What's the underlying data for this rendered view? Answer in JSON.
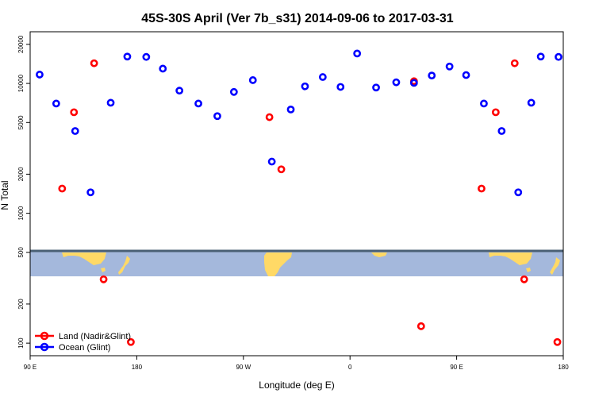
{
  "chart_data": {
    "type": "scatter",
    "title": "45S-30S April (Ver 7b_s31)   2014-09-06 to 2017-03-31",
    "xlabel": "Longitude (deg E)",
    "ylabel": "N Total",
    "x_scale": "linear",
    "y_scale": "log",
    "xlim": [
      90,
      540
    ],
    "ylim": [
      80,
      25000
    ],
    "x_tick_values": [
      90,
      180,
      270,
      360,
      450,
      540
    ],
    "x_tick_labels": [
      "90 E",
      "180",
      "90 W",
      "0",
      "90 E",
      "180"
    ],
    "y_tick_values": [
      100,
      200,
      500,
      1000,
      2000,
      5000,
      10000,
      20000
    ],
    "y_tick_labels": [
      "100",
      "200",
      "500",
      "1000",
      "2000",
      "5000",
      "10000",
      "20000"
    ],
    "grid": false,
    "legend_position": "bottom-left",
    "series": [
      {
        "name": "Land (Nadir&Glint)",
        "color": "#ff0000",
        "x": [
          117,
          127,
          144,
          152,
          175,
          292,
          302,
          414,
          420,
          471,
          483,
          499,
          507,
          535
        ],
        "y": [
          1550,
          6000,
          14300,
          310,
          102,
          5500,
          2180,
          10400,
          135,
          1550,
          6000,
          14300,
          310,
          102
        ]
      },
      {
        "name": "Ocean (Glint)",
        "color": "#0000ff",
        "x": [
          98,
          112,
          128,
          141,
          158,
          172,
          188,
          202,
          216,
          232,
          248,
          262,
          278,
          294,
          310,
          322,
          337,
          352,
          366,
          382,
          399,
          414,
          429,
          444,
          458,
          473,
          488,
          502,
          513,
          521,
          536
        ],
        "y": [
          11700,
          7000,
          4300,
          1450,
          7100,
          16100,
          16000,
          13000,
          8800,
          7000,
          5600,
          8600,
          10600,
          2500,
          6300,
          9500,
          11200,
          9400,
          17000,
          9300,
          10200,
          10100,
          11500,
          13500,
          11600,
          7000,
          4300,
          1450,
          7100,
          16100,
          16000
        ]
      }
    ],
    "map_overlay": {
      "land_color": "#ffd966",
      "ocean_color": "#a4b8dc",
      "band_edge_color": "#4a6075",
      "latitude_band": "45S-30S"
    }
  }
}
